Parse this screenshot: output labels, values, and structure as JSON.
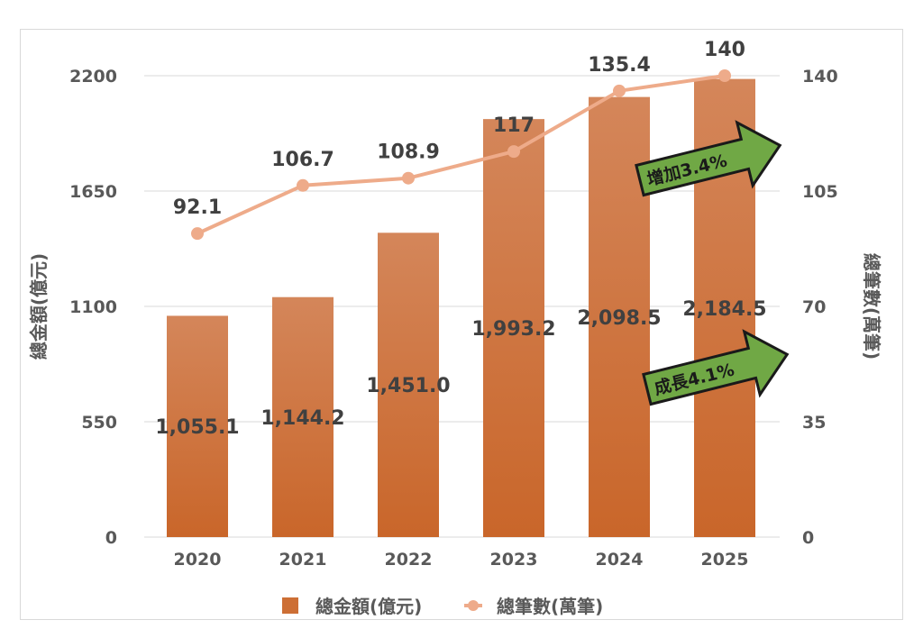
{
  "chart_data": {
    "type": "bar+line",
    "categories": [
      "2020",
      "2021",
      "2022",
      "2023",
      "2024",
      "2025"
    ],
    "series": [
      {
        "name": "總金額(億元)",
        "type": "bar",
        "axis": "left",
        "values": [
          1055.1,
          1144.2,
          1451.0,
          1993.2,
          2098.5,
          2184.5
        ],
        "labels": [
          "1,055.1",
          "1,144.2",
          "1,451.0",
          "1,993.2",
          "2,098.5",
          "2,184.5"
        ],
        "color": "#cd6f35"
      },
      {
        "name": "總筆數(萬筆)",
        "type": "line",
        "axis": "right",
        "values": [
          92.1,
          106.7,
          108.9,
          117,
          135.4,
          140
        ],
        "labels": [
          "92.1",
          "106.7",
          "108.9",
          "117",
          "135.4",
          "140"
        ],
        "color": "#eeab8a"
      }
    ],
    "left_axis": {
      "label": "總金額(億元)",
      "range": [
        0,
        2200
      ],
      "ticks": [
        "0",
        "550",
        "1100",
        "1650",
        "2200"
      ]
    },
    "right_axis": {
      "label": "總筆數(萬筆)",
      "range": [
        0,
        140
      ],
      "ticks": [
        "0",
        "35",
        "70",
        "105",
        "140"
      ]
    },
    "annotations": [
      {
        "text": "增加3.4%",
        "color": "#70a845"
      },
      {
        "text": "成長4.1%",
        "color": "#70a845"
      }
    ],
    "legend": {
      "placement": "bottom"
    },
    "grid": true
  }
}
